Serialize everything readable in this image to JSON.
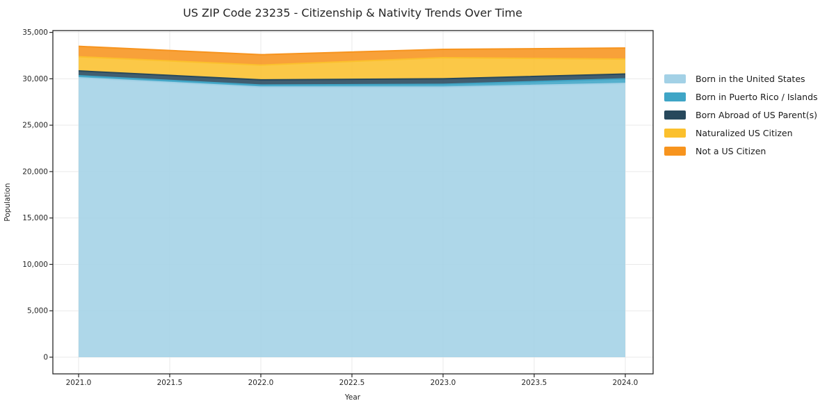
{
  "chart_data": {
    "type": "area",
    "stacked": true,
    "title": "US ZIP Code 23235 - Citizenship & Nativity Trends Over Time",
    "xlabel": "Year",
    "ylabel": "Population",
    "x": [
      2021,
      2022,
      2023,
      2024
    ],
    "series": [
      {
        "name": "Born in the United States",
        "color": "#a3d1e6",
        "values": [
          30100,
          29100,
          29100,
          29500
        ]
      },
      {
        "name": "Born in Puerto Rico / Islands",
        "color": "#3fa5c6",
        "values": [
          225,
          225,
          300,
          490
        ]
      },
      {
        "name": "Born Abroad of US Parent(s)",
        "color": "#27485c",
        "values": [
          525,
          560,
          600,
          525
        ]
      },
      {
        "name": "Naturalized US Citizen",
        "color": "#fbc02d",
        "values": [
          1525,
          1590,
          2275,
          1600
        ]
      },
      {
        "name": "Not a US Citizen",
        "color": "#f7941e",
        "values": [
          1125,
          1125,
          900,
          1200
        ]
      }
    ],
    "x_ticks": [
      {
        "value": 2021.0,
        "label": "2021.0"
      },
      {
        "value": 2021.5,
        "label": "2021.5"
      },
      {
        "value": 2022.0,
        "label": "2022.0"
      },
      {
        "value": 2022.5,
        "label": "2022.5"
      },
      {
        "value": 2023.0,
        "label": "2023.0"
      },
      {
        "value": 2023.5,
        "label": "2023.5"
      },
      {
        "value": 2024.0,
        "label": "2024.0"
      }
    ],
    "y_ticks": [
      {
        "value": 0,
        "label": "0"
      },
      {
        "value": 5000,
        "label": "5,000"
      },
      {
        "value": 10000,
        "label": "10,000"
      },
      {
        "value": 15000,
        "label": "15,000"
      },
      {
        "value": 20000,
        "label": "20,000"
      },
      {
        "value": 25000,
        "label": "25,000"
      },
      {
        "value": 30000,
        "label": "30,000"
      },
      {
        "value": 35000,
        "label": "35,000"
      }
    ],
    "xlim": [
      2021.0,
      2024.0
    ],
    "ylim": [
      0,
      35000
    ],
    "grid": true,
    "legend_position": "right-outside"
  }
}
